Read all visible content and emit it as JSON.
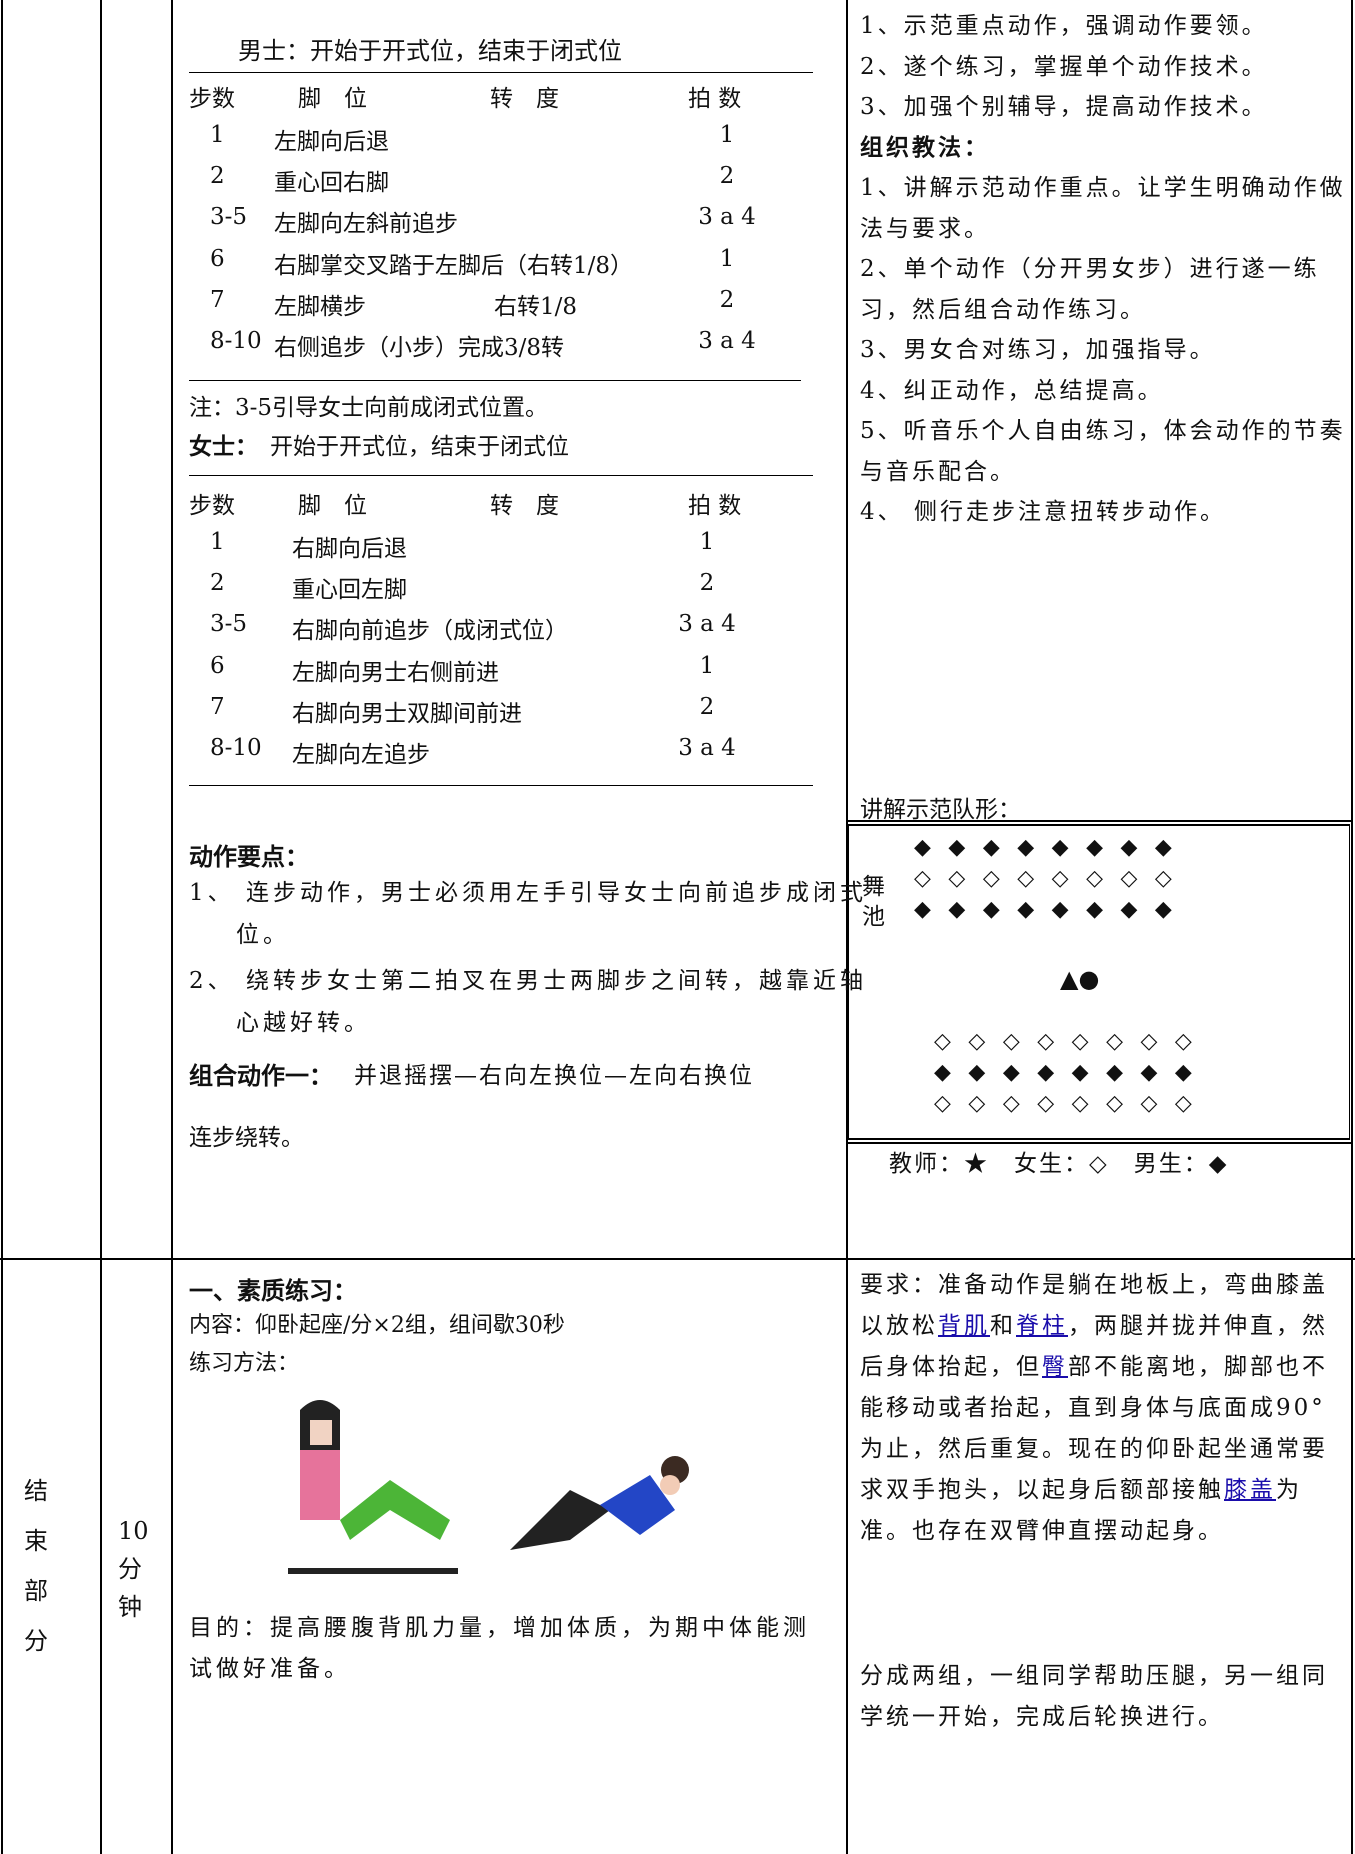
{
  "lesson": {
    "male_heading": "男士：开始于开式位，结束于闭式位",
    "male_header": [
      "步数",
      "脚　位",
      "转　度",
      "拍 数"
    ],
    "male_rows": [
      {
        "step": "1",
        "foot": "左脚向后退",
        "beat": "1"
      },
      {
        "step": "2",
        "foot": "重心回右脚",
        "beat": "2"
      },
      {
        "step": "3-5",
        "foot": "左脚向左斜前追步",
        "beat": "3 a 4"
      },
      {
        "step": "6",
        "foot": "右脚掌交叉踏于左脚后（右转1/8）",
        "beat": "1"
      },
      {
        "step": "7",
        "foot": "左脚横步",
        "turn": "右转1/8",
        "beat": "2"
      },
      {
        "step": "8-10",
        "foot": "右侧追步（小步）完成3/8转",
        "beat": "3 a 4"
      }
    ],
    "note": "注：3-5引导女士向前成闭式位置。",
    "female_label": "女士：",
    "female_heading": "开始于开式位，结束于闭式位",
    "female_header": [
      "步数",
      "脚　位",
      "转　度",
      "拍 数"
    ],
    "female_rows": [
      {
        "step": "1",
        "foot": "右脚向后退",
        "beat": "1"
      },
      {
        "step": "2",
        "foot": "重心回左脚",
        "beat": "2"
      },
      {
        "step": "3-5",
        "foot": "右脚向前追步（成闭式位）",
        "beat": "3 a 4"
      },
      {
        "step": "6",
        "foot": "左脚向男士右侧前进",
        "beat": "1"
      },
      {
        "step": "7",
        "foot": "右脚向男士双脚间前进",
        "beat": "2"
      },
      {
        "step": "8-10",
        "foot": "左脚向左追步",
        "beat": "3 a 4"
      }
    ],
    "key_title": "动作要点：",
    "key_items": [
      "1、 连步动作，男士必须用左手引导女士向前追步成闭式位。",
      "2、 绕转步女士第二拍叉在男士两脚步之间转，越靠近轴心越好转。"
    ],
    "combo_label": "组合动作一：",
    "combo_text": "并退摇摆—右向左换位—左向右换位",
    "combo_cont": "连步绕转。"
  },
  "methods": {
    "lines": [
      "1、示范重点动作，强调动作要领。",
      "2、遂个练习，掌握单个动作技术。",
      "3、加强个别辅导，提高动作技术。"
    ],
    "org_title": "组织教法：",
    "org_items": [
      "1、讲解示范动作重点。让学生明确动作做法与要求。",
      "2、单个动作（分开男女步）进行遂一练习，然后组合动作练习。",
      "3、男女合对练习，加强指导。",
      "4、纠正动作，总结提高。",
      "5、听音乐个人自由练习，体会动作的节奏与音乐配合。",
      "4、 侧行走步注意扭转步动作。"
    ],
    "formation_title": "讲解示范队形："
  },
  "formation": {
    "label_top": "舞",
    "label_bottom": "池",
    "rows_top": [
      "◆◆◆◆◆◆◆◆",
      "◇◇◇◇◇◇◇◇",
      "◆◆◆◆◆◆◆◆"
    ],
    "center": "▲●",
    "rows_bottom": [
      "◇◇◇◇◇◇◇◇",
      "◆◆◆◆◆◆◆◆",
      "◇◇◇◇◇◇◇◇"
    ],
    "legend": "教师：★　女生：◇　男生：◆"
  },
  "ending": {
    "section": "结束部分",
    "duration": "10分钟",
    "title": "一、素质练习：",
    "content": "内容：仰卧起座/分×2组，组间歇30秒",
    "method": "练习方法：",
    "purpose": "目的：提高腰腹背肌力量，增加体质，为期中体能测试做好准备。",
    "requirement": [
      {
        "text": "要求：准备动作是躺在地板上，弯曲膝盖以放松"
      },
      {
        "text": "背肌",
        "link": true
      },
      {
        "text": "和"
      },
      {
        "text": "脊柱",
        "link": true
      },
      {
        "text": "，两腿并拢并伸直，然后身体抬起，但"
      },
      {
        "text": "臀",
        "link": true
      },
      {
        "text": "部不能离地，脚部也不能移动或者抬起，直到身体与底面成90°为止，然后重复。现在的仰卧起坐通常要求双手抱头，以起身后额部接触"
      },
      {
        "text": "膝盖",
        "link": true
      },
      {
        "text": "为准。也存在双臂伸直摆动起身。"
      }
    ],
    "grouping": "分成两组，一组同学帮助压腿，另一组同学统一开始，完成后轮换进行。"
  }
}
